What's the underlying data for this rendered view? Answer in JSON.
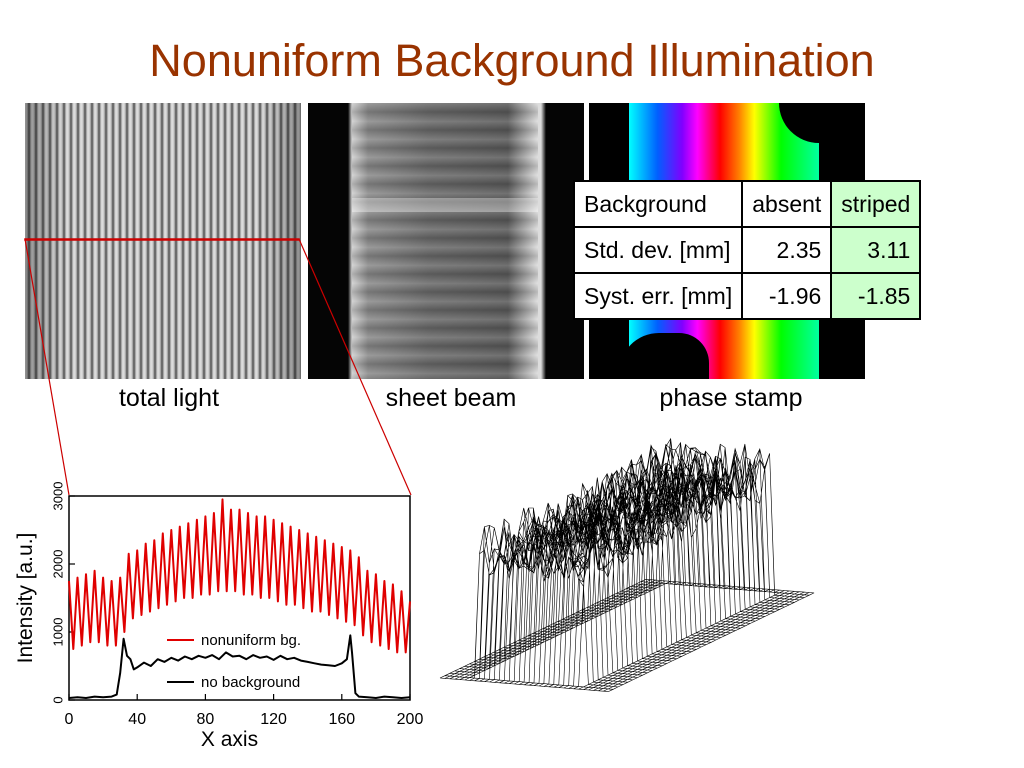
{
  "title": "Nonuniform Background Illumination",
  "captions": {
    "total_light": "total light",
    "sheet_beam": "sheet beam",
    "phase_stamp": "phase stamp"
  },
  "table": {
    "header": [
      "Background",
      "absent",
      "striped"
    ],
    "rows": [
      [
        "Std. dev. [mm]",
        "2.35",
        "3.11"
      ],
      [
        "Syst. err. [mm]",
        "-1.96",
        "-1.85"
      ]
    ],
    "highlight_color": "#ccffcc"
  },
  "colors": {
    "title": "#993300",
    "zoom_lines": "#cc0000"
  },
  "chart_data": {
    "type": "line",
    "title": "",
    "xlabel": "X axis",
    "ylabel": "Intensity [a.u.]",
    "xlim": [
      0,
      200
    ],
    "ylim": [
      0,
      3000
    ],
    "xticks": [
      0,
      40,
      80,
      120,
      160,
      200
    ],
    "yticks": [
      0,
      1000,
      2000,
      3000
    ],
    "legend_position": "bottom-center",
    "series": [
      {
        "name": "nonuniform bg.",
        "color": "#e00000",
        "x": [
          0,
          2.5,
          5,
          7.5,
          10,
          12.5,
          15,
          17.5,
          20,
          22.5,
          25,
          27.5,
          30,
          32.5,
          35,
          37.5,
          40,
          42.5,
          45,
          47.5,
          50,
          52.5,
          55,
          57.5,
          60,
          62.5,
          65,
          67.5,
          70,
          72.5,
          75,
          77.5,
          80,
          82.5,
          85,
          87.5,
          90,
          92.5,
          95,
          97.5,
          100,
          102.5,
          105,
          107.5,
          110,
          112.5,
          115,
          117.5,
          120,
          122.5,
          125,
          127.5,
          130,
          132.5,
          135,
          137.5,
          140,
          142.5,
          145,
          147.5,
          150,
          152.5,
          155,
          157.5,
          160,
          162.5,
          165,
          167.5,
          170,
          172.5,
          175,
          177.5,
          180,
          182.5,
          185,
          187.5,
          190,
          192.5,
          195,
          197.5,
          200
        ],
        "y": [
          1750,
          750,
          1800,
          800,
          1850,
          850,
          1900,
          850,
          1800,
          800,
          1750,
          800,
          1800,
          1000,
          2150,
          1200,
          2200,
          1250,
          2300,
          1300,
          2350,
          1350,
          2450,
          1400,
          2500,
          1450,
          2550,
          1500,
          2600,
          1500,
          2650,
          1550,
          2700,
          1550,
          2750,
          1600,
          2950,
          1600,
          2800,
          1600,
          2800,
          1550,
          2750,
          1550,
          2700,
          1500,
          2700,
          1500,
          2650,
          1450,
          2600,
          1400,
          2550,
          1400,
          2500,
          1350,
          2450,
          1300,
          2400,
          1300,
          2350,
          1250,
          2300,
          1200,
          2250,
          1150,
          2200,
          1100,
          2100,
          950,
          1900,
          850,
          1850,
          800,
          1750,
          750,
          1700,
          700,
          1600,
          700,
          1450
        ],
        "line_width": 2
      },
      {
        "name": "no background",
        "color": "#000000",
        "x": [
          0,
          5,
          10,
          15,
          20,
          25,
          28,
          30,
          32,
          34,
          36,
          38,
          40,
          44,
          48,
          52,
          56,
          60,
          64,
          68,
          72,
          76,
          80,
          84,
          88,
          92,
          96,
          100,
          104,
          108,
          112,
          116,
          120,
          124,
          128,
          132,
          136,
          140,
          144,
          148,
          152,
          156,
          160,
          163,
          165,
          166,
          168,
          170,
          175,
          180,
          185,
          190,
          195,
          200
        ],
        "y": [
          30,
          40,
          30,
          50,
          40,
          50,
          80,
          400,
          900,
          650,
          600,
          450,
          480,
          550,
          500,
          600,
          560,
          620,
          580,
          640,
          600,
          650,
          620,
          660,
          600,
          700,
          640,
          650,
          600,
          660,
          620,
          640,
          590,
          650,
          600,
          620,
          580,
          560,
          540,
          520,
          510,
          500,
          540,
          600,
          950,
          700,
          100,
          50,
          40,
          30,
          50,
          40,
          30,
          40
        ],
        "line_width": 2
      }
    ]
  }
}
